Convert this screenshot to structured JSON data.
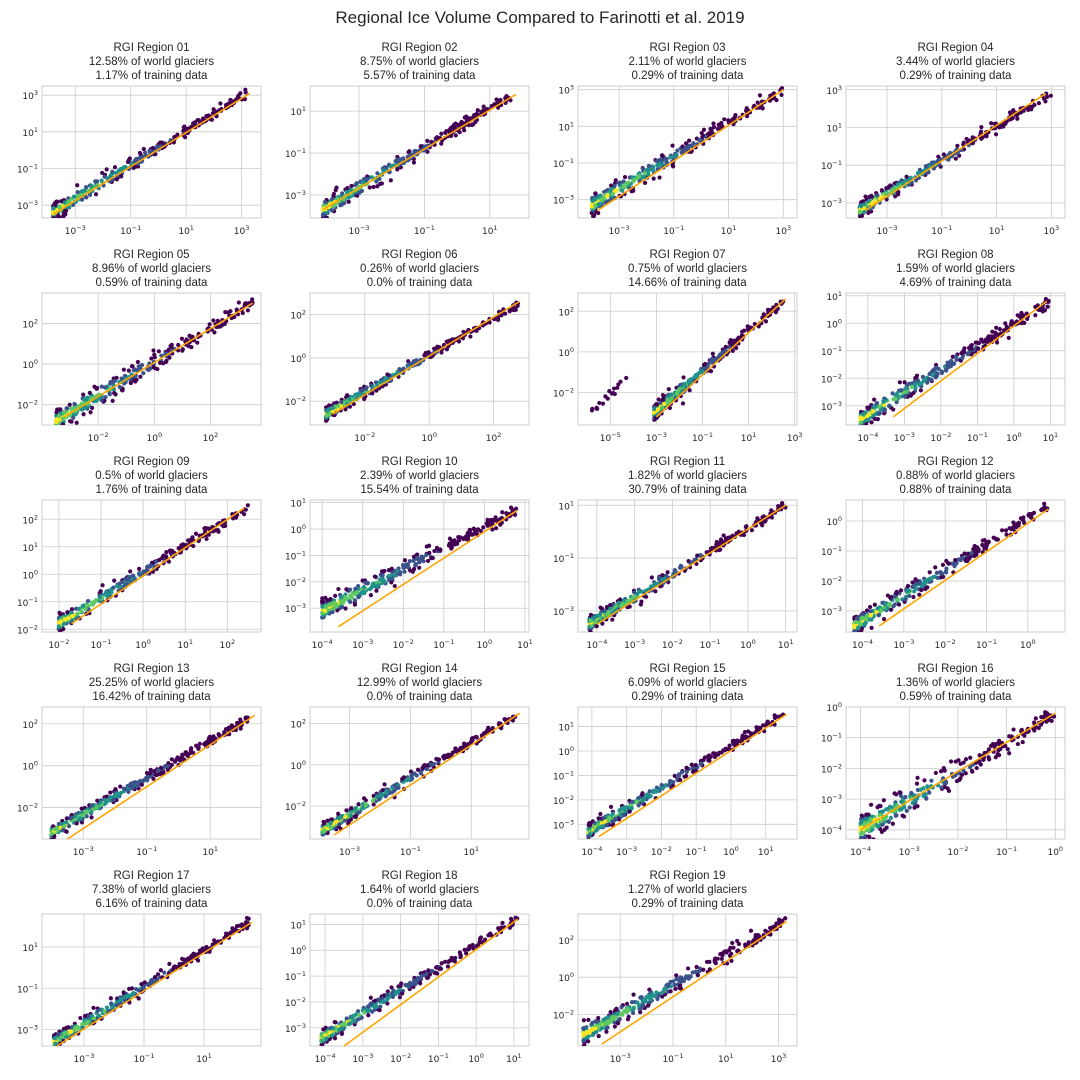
{
  "figure_title": "Regional Ice Volume Compared to Farinotti et al. 2019",
  "colors": {
    "fit_line": "#ffa500",
    "grid": "#cccccc",
    "frame": "#cccccc",
    "colormap": [
      "#440154",
      "#3b528b",
      "#21918c",
      "#5ec962",
      "#fde725"
    ]
  },
  "chart_data": [
    {
      "type": "scatter",
      "title": [
        "RGI Region 01",
        "12.58% of world glaciers",
        "1.17% of training data"
      ],
      "x_ticks": [
        -3,
        -1,
        1,
        3
      ],
      "y_ticks": [
        -3,
        -1,
        1,
        3
      ],
      "xlim": [
        -4.2,
        3.7
      ],
      "ylim": [
        -3.7,
        3.5
      ],
      "points": {
        "x": [
          -3.8,
          3.2
        ],
        "y": [
          -3.4,
          3.1
        ]
      },
      "fit_line": {
        "x": [
          -3.8,
          3.3
        ],
        "y": [
          -3.5,
          3.1
        ]
      },
      "scatter_spread": 0.18
    },
    {
      "type": "scatter",
      "title": [
        "RGI Region 02",
        "8.75% of world glaciers",
        "5.57% of training data"
      ],
      "x_ticks": [
        -3,
        -1,
        1
      ],
      "y_ticks": [
        -3,
        -1,
        1
      ],
      "xlim": [
        -4.5,
        2.2
      ],
      "ylim": [
        -4.1,
        2.2
      ],
      "points": {
        "x": [
          -4.1,
          1.7
        ],
        "y": [
          -3.7,
          1.8
        ]
      },
      "fit_line": {
        "x": [
          -4.1,
          1.8
        ],
        "y": [
          -3.7,
          1.8
        ]
      },
      "scatter_spread": 0.18
    },
    {
      "type": "scatter",
      "title": [
        "RGI Region 03",
        "2.11% of world glaciers",
        "0.29% of training data"
      ],
      "x_ticks": [
        -3,
        -1,
        1,
        3
      ],
      "y_ticks": [
        -3,
        -1,
        1,
        3
      ],
      "xlim": [
        -4.5,
        3.5
      ],
      "ylim": [
        -4.0,
        3.2
      ],
      "points": {
        "x": [
          -4.0,
          3.0
        ],
        "y": [
          -3.3,
          2.9
        ]
      },
      "fit_line": {
        "x": [
          -3.8,
          3.0
        ],
        "y": [
          -3.6,
          3.0
        ]
      },
      "scatter_spread": 0.22
    },
    {
      "type": "scatter",
      "title": [
        "RGI Region 04",
        "3.44% of world glaciers",
        "0.29% of training data"
      ],
      "x_ticks": [
        -3,
        -1,
        1,
        3
      ],
      "y_ticks": [
        -3,
        -1,
        1,
        3
      ],
      "xlim": [
        -4.5,
        3.5
      ],
      "ylim": [
        -3.8,
        3.2
      ],
      "points": {
        "x": [
          -4.0,
          3.0
        ],
        "y": [
          -3.4,
          2.8
        ]
      },
      "fit_line": {
        "x": [
          -3.8,
          2.8
        ],
        "y": [
          -3.4,
          2.8
        ]
      },
      "scatter_spread": 0.16
    },
    {
      "type": "scatter",
      "title": [
        "RGI Region 05",
        "8.96% of world glaciers",
        "0.59% of training data"
      ],
      "x_ticks": [
        -2,
        0,
        2
      ],
      "y_ticks": [
        -2,
        0,
        2
      ],
      "xlim": [
        -4.0,
        3.8
      ],
      "ylim": [
        -3.0,
        3.5
      ],
      "points": {
        "x": [
          -3.5,
          3.5
        ],
        "y": [
          -2.8,
          3.0
        ]
      },
      "fit_line": {
        "x": [
          -3.2,
          3.5
        ],
        "y": [
          -2.6,
          3.0
        ]
      },
      "scatter_spread": 0.22
    },
    {
      "type": "scatter",
      "title": [
        "RGI Region 06",
        "0.26% of world glaciers",
        "0.0% of training data"
      ],
      "x_ticks": [
        -2,
        0,
        2
      ],
      "y_ticks": [
        -2,
        0,
        2
      ],
      "xlim": [
        -3.7,
        3.1
      ],
      "ylim": [
        -3.1,
        3.0
      ],
      "points": {
        "x": [
          -3.2,
          2.8
        ],
        "y": [
          -2.6,
          2.5
        ]
      },
      "fit_line": {
        "x": [
          -3.0,
          2.8
        ],
        "y": [
          -2.6,
          2.6
        ]
      },
      "scatter_spread": 0.12
    },
    {
      "type": "scatter",
      "title": [
        "RGI Region 07",
        "0.75% of world glaciers",
        "14.66% of training data"
      ],
      "x_ticks": [
        -5,
        -3,
        -1,
        1,
        3
      ],
      "y_ticks": [
        -2,
        0,
        2
      ],
      "xlim": [
        -6.4,
        3.1
      ],
      "ylim": [
        -3.6,
        2.9
      ],
      "points": {
        "x": [
          -3.1,
          2.5
        ],
        "y": [
          -3.0,
          2.5
        ]
      },
      "outliers": {
        "x": [
          -5.9,
          -4.3
        ],
        "y": [
          -3.1,
          -1.3
        ]
      },
      "fit_line": {
        "x": [
          -3.0,
          2.6
        ],
        "y": [
          -3.2,
          2.6
        ]
      },
      "scatter_spread": 0.16
    },
    {
      "type": "scatter",
      "title": [
        "RGI Region 08",
        "1.59% of world glaciers",
        "4.69% of training data"
      ],
      "x_ticks": [
        -4,
        -3,
        -2,
        -1,
        0,
        1
      ],
      "y_ticks": [
        -3,
        -2,
        -1,
        0,
        1
      ],
      "xlim": [
        -4.6,
        1.4
      ],
      "ylim": [
        -3.7,
        1.1
      ],
      "points": {
        "x": [
          -4.2,
          1.0
        ],
        "y": [
          -3.5,
          0.8
        ]
      },
      "fit_line": {
        "x": [
          -3.3,
          0.9
        ],
        "y": [
          -3.4,
          0.8
        ]
      },
      "scatter_spread": 0.14
    },
    {
      "type": "scatter",
      "title": [
        "RGI Region 09",
        "0.5% of world glaciers",
        "1.76% of training data"
      ],
      "x_ticks": [
        -2,
        -1,
        0,
        1,
        2
      ],
      "y_ticks": [
        -2,
        -1,
        0,
        1,
        2
      ],
      "xlim": [
        -2.4,
        2.8
      ],
      "ylim": [
        -2.1,
        2.7
      ],
      "points": {
        "x": [
          -2.0,
          2.5
        ],
        "y": [
          -1.8,
          2.4
        ]
      },
      "fit_line": {
        "x": [
          -1.7,
          2.4
        ],
        "y": [
          -1.8,
          2.4
        ]
      },
      "scatter_spread": 0.12
    },
    {
      "type": "scatter",
      "title": [
        "RGI Region 10",
        "2.39% of world glaciers",
        "15.54% of training data"
      ],
      "x_ticks": [
        -4,
        -3,
        -2,
        -1,
        0,
        1
      ],
      "y_ticks": [
        -3,
        -2,
        -1,
        0,
        1
      ],
      "xlim": [
        -4.3,
        1.1
      ],
      "ylim": [
        -3.9,
        1.1
      ],
      "points": {
        "x": [
          -4.0,
          0.8
        ],
        "y": [
          -3.1,
          0.7
        ]
      },
      "fit_line": {
        "x": [
          -3.6,
          0.8
        ],
        "y": [
          -3.7,
          0.7
        ]
      },
      "scatter_spread": 0.16
    },
    {
      "type": "scatter",
      "title": [
        "RGI Region 11",
        "1.82% of world glaciers",
        "30.79% of training data"
      ],
      "x_ticks": [
        -4,
        -3,
        -2,
        -1,
        0,
        1
      ],
      "y_ticks": [
        -3,
        -1,
        1
      ],
      "xlim": [
        -4.5,
        1.3
      ],
      "ylim": [
        -3.8,
        1.2
      ],
      "points": {
        "x": [
          -4.2,
          1.0
        ],
        "y": [
          -3.5,
          1.0
        ]
      },
      "fit_line": {
        "x": [
          -4.0,
          1.0
        ],
        "y": [
          -3.5,
          1.0
        ]
      },
      "scatter_spread": 0.12
    },
    {
      "type": "scatter",
      "title": [
        "RGI Region 12",
        "0.88% of world glaciers",
        "0.88% of training data"
      ],
      "x_ticks": [
        -4,
        -3,
        -2,
        -1,
        0
      ],
      "y_ticks": [
        -3,
        -2,
        -1,
        0
      ],
      "xlim": [
        -4.4,
        0.9
      ],
      "ylim": [
        -3.7,
        0.7
      ],
      "points": {
        "x": [
          -4.2,
          0.5
        ],
        "y": [
          -3.5,
          0.5
        ]
      },
      "fit_line": {
        "x": [
          -3.6,
          0.5
        ],
        "y": [
          -3.5,
          0.4
        ]
      },
      "scatter_spread": 0.12
    },
    {
      "type": "scatter",
      "title": [
        "RGI Region 13",
        "25.25% of world glaciers",
        "16.42% of training data"
      ],
      "x_ticks": [
        -3,
        -1,
        1
      ],
      "y_ticks": [
        -2,
        0,
        2
      ],
      "xlim": [
        -4.3,
        2.6
      ],
      "ylim": [
        -3.5,
        2.8
      ],
      "points": {
        "x": [
          -4.0,
          2.2
        ],
        "y": [
          -3.2,
          2.2
        ]
      },
      "fit_line": {
        "x": [
          -3.5,
          2.4
        ],
        "y": [
          -3.5,
          2.4
        ]
      },
      "scatter_spread": 0.13
    },
    {
      "type": "scatter",
      "title": [
        "RGI Region 14",
        "12.99% of world glaciers",
        "0.0% of training data"
      ],
      "x_ticks": [
        -3,
        -1,
        1
      ],
      "y_ticks": [
        -2,
        0,
        2
      ],
      "xlim": [
        -4.3,
        2.9
      ],
      "ylim": [
        -3.6,
        2.8
      ],
      "points": {
        "x": [
          -3.9,
          2.6
        ],
        "y": [
          -3.2,
          2.5
        ]
      },
      "fit_line": {
        "x": [
          -3.5,
          2.6
        ],
        "y": [
          -3.4,
          2.5
        ]
      },
      "scatter_spread": 0.13
    },
    {
      "type": "scatter",
      "title": [
        "RGI Region 15",
        "6.09% of world glaciers",
        "0.29% of training data"
      ],
      "x_ticks": [
        -4,
        -3,
        -2,
        -1,
        0,
        1
      ],
      "y_ticks": [
        -3,
        -2,
        -1,
        0,
        1
      ],
      "xlim": [
        -4.4,
        1.9
      ],
      "ylim": [
        -3.6,
        1.8
      ],
      "points": {
        "x": [
          -4.1,
          1.5
        ],
        "y": [
          -3.3,
          1.5
        ]
      },
      "fit_line": {
        "x": [
          -3.8,
          1.6
        ],
        "y": [
          -3.5,
          1.5
        ]
      },
      "scatter_spread": 0.12
    },
    {
      "type": "scatter",
      "title": [
        "RGI Region 16",
        "1.36% of world glaciers",
        "0.59% of training data"
      ],
      "x_ticks": [
        -4,
        -3,
        -2,
        -1,
        0
      ],
      "y_ticks": [
        -4,
        -3,
        -2,
        -1,
        0
      ],
      "xlim": [
        -4.3,
        0.2
      ],
      "ylim": [
        -4.3,
        0.0
      ],
      "points": {
        "x": [
          -4.0,
          0.0
        ],
        "y": [
          -4.0,
          -0.2
        ]
      },
      "fit_line": {
        "x": [
          -4.0,
          0.0
        ],
        "y": [
          -4.0,
          -0.2
        ]
      },
      "scatter_spread": 0.2
    },
    {
      "type": "scatter",
      "title": [
        "RGI Region 17",
        "7.38% of world glaciers",
        "6.16% of training data"
      ],
      "x_ticks": [
        -3,
        -1,
        1
      ],
      "y_ticks": [
        -3,
        -1,
        1
      ],
      "xlim": [
        -4.4,
        2.9
      ],
      "ylim": [
        -3.8,
        2.6
      ],
      "points": {
        "x": [
          -4.0,
          2.5
        ],
        "y": [
          -3.6,
          2.2
        ]
      },
      "fit_line": {
        "x": [
          -3.9,
          2.6
        ],
        "y": [
          -3.8,
          2.2
        ]
      },
      "scatter_spread": 0.14
    },
    {
      "type": "scatter",
      "title": [
        "RGI Region 18",
        "1.64% of world glaciers",
        "0.0% of training data"
      ],
      "x_ticks": [
        -4,
        -3,
        -2,
        -1,
        0,
        1
      ],
      "y_ticks": [
        -3,
        -2,
        -1,
        0,
        1
      ],
      "xlim": [
        -4.4,
        1.4
      ],
      "ylim": [
        -3.7,
        1.4
      ],
      "points": {
        "x": [
          -4.1,
          1.1
        ],
        "y": [
          -3.4,
          1.2
        ]
      },
      "fit_line": {
        "x": [
          -3.5,
          1.1
        ],
        "y": [
          -3.7,
          1.2
        ]
      },
      "scatter_spread": 0.12
    },
    {
      "type": "scatter",
      "title": [
        "RGI Region 19",
        "1.27% of world glaciers",
        "0.29% of training data"
      ],
      "x_ticks": [
        -3,
        -1,
        1,
        3
      ],
      "y_ticks": [
        -2,
        0,
        2
      ],
      "xlim": [
        -4.6,
        3.7
      ],
      "ylim": [
        -3.7,
        3.4
      ],
      "points": {
        "x": [
          -4.4,
          3.3
        ],
        "y": [
          -3.1,
          3.0
        ]
      },
      "fit_line": {
        "x": [
          -3.7,
          3.3
        ],
        "y": [
          -3.6,
          3.0
        ]
      },
      "scatter_spread": 0.22
    }
  ]
}
